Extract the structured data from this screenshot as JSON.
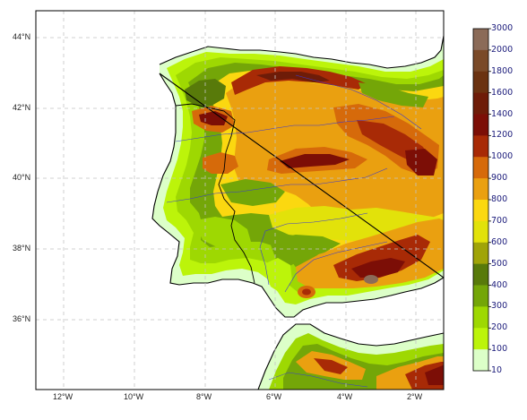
{
  "map": {
    "lat_labels": [
      "44°N",
      "42°N",
      "40°N",
      "38°N",
      "36°N"
    ],
    "lon_labels": [
      "12°W",
      "10°W",
      "8°W",
      "6°W",
      "4°W",
      "2°W"
    ],
    "ocean_color": "#ffffff",
    "gridline_color": "#b8b8b8",
    "coastline_color": "#000000",
    "river_color": "#3a3ad0",
    "border_color": "#000000"
  },
  "colorbar": {
    "labels": [
      "3000",
      "2000",
      "1800",
      "1600",
      "1400",
      "1200",
      "1000",
      "900",
      "800",
      "700",
      "600",
      "500",
      "400",
      "300",
      "200",
      "100",
      "10"
    ],
    "colors": [
      "#8b6b58",
      "#7a4a28",
      "#6b3210",
      "#6e1c08",
      "#7c0e06",
      "#a82a06",
      "#d66a0a",
      "#eaa010",
      "#fbd810",
      "#e2e20a",
      "#a0a408",
      "#587a0a",
      "#74a608",
      "#9ed802",
      "#bcf40a",
      "#dcffc8"
    ]
  }
}
